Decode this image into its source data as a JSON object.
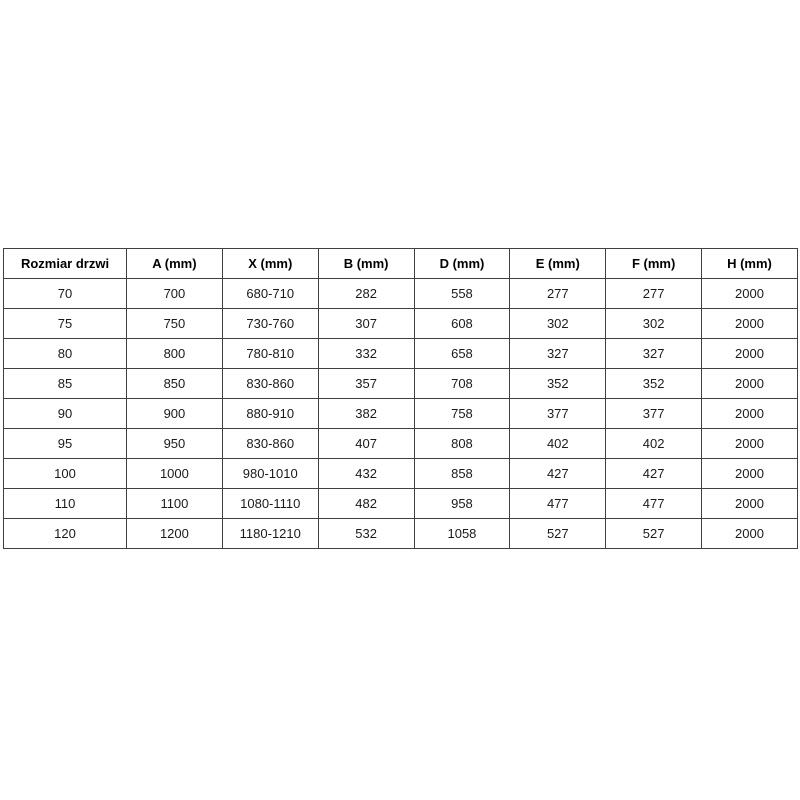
{
  "style": {
    "background_color": "#ffffff",
    "border_color": "#404040",
    "text_color": "#1a1a1a"
  },
  "chart_data": {
    "type": "table",
    "title": "",
    "columns": [
      "Rozmiar drzwi",
      "A (mm)",
      "X (mm)",
      "B (mm)",
      "D (mm)",
      "E (mm)",
      "F (mm)",
      "H (mm)"
    ],
    "rows": [
      [
        "70",
        "700",
        "680-710",
        "282",
        "558",
        "277",
        "277",
        "2000"
      ],
      [
        "75",
        "750",
        "730-760",
        "307",
        "608",
        "302",
        "302",
        "2000"
      ],
      [
        "80",
        "800",
        "780-810",
        "332",
        "658",
        "327",
        "327",
        "2000"
      ],
      [
        "85",
        "850",
        "830-860",
        "357",
        "708",
        "352",
        "352",
        "2000"
      ],
      [
        "90",
        "900",
        "880-910",
        "382",
        "758",
        "377",
        "377",
        "2000"
      ],
      [
        "95",
        "950",
        "830-860",
        "407",
        "808",
        "402",
        "402",
        "2000"
      ],
      [
        "100",
        "1000",
        "980-1010",
        "432",
        "858",
        "427",
        "427",
        "2000"
      ],
      [
        "110",
        "1100",
        "1080-1110",
        "482",
        "958",
        "477",
        "477",
        "2000"
      ],
      [
        "120",
        "1200",
        "1180-1210",
        "532",
        "1058",
        "527",
        "527",
        "2000"
      ]
    ]
  }
}
